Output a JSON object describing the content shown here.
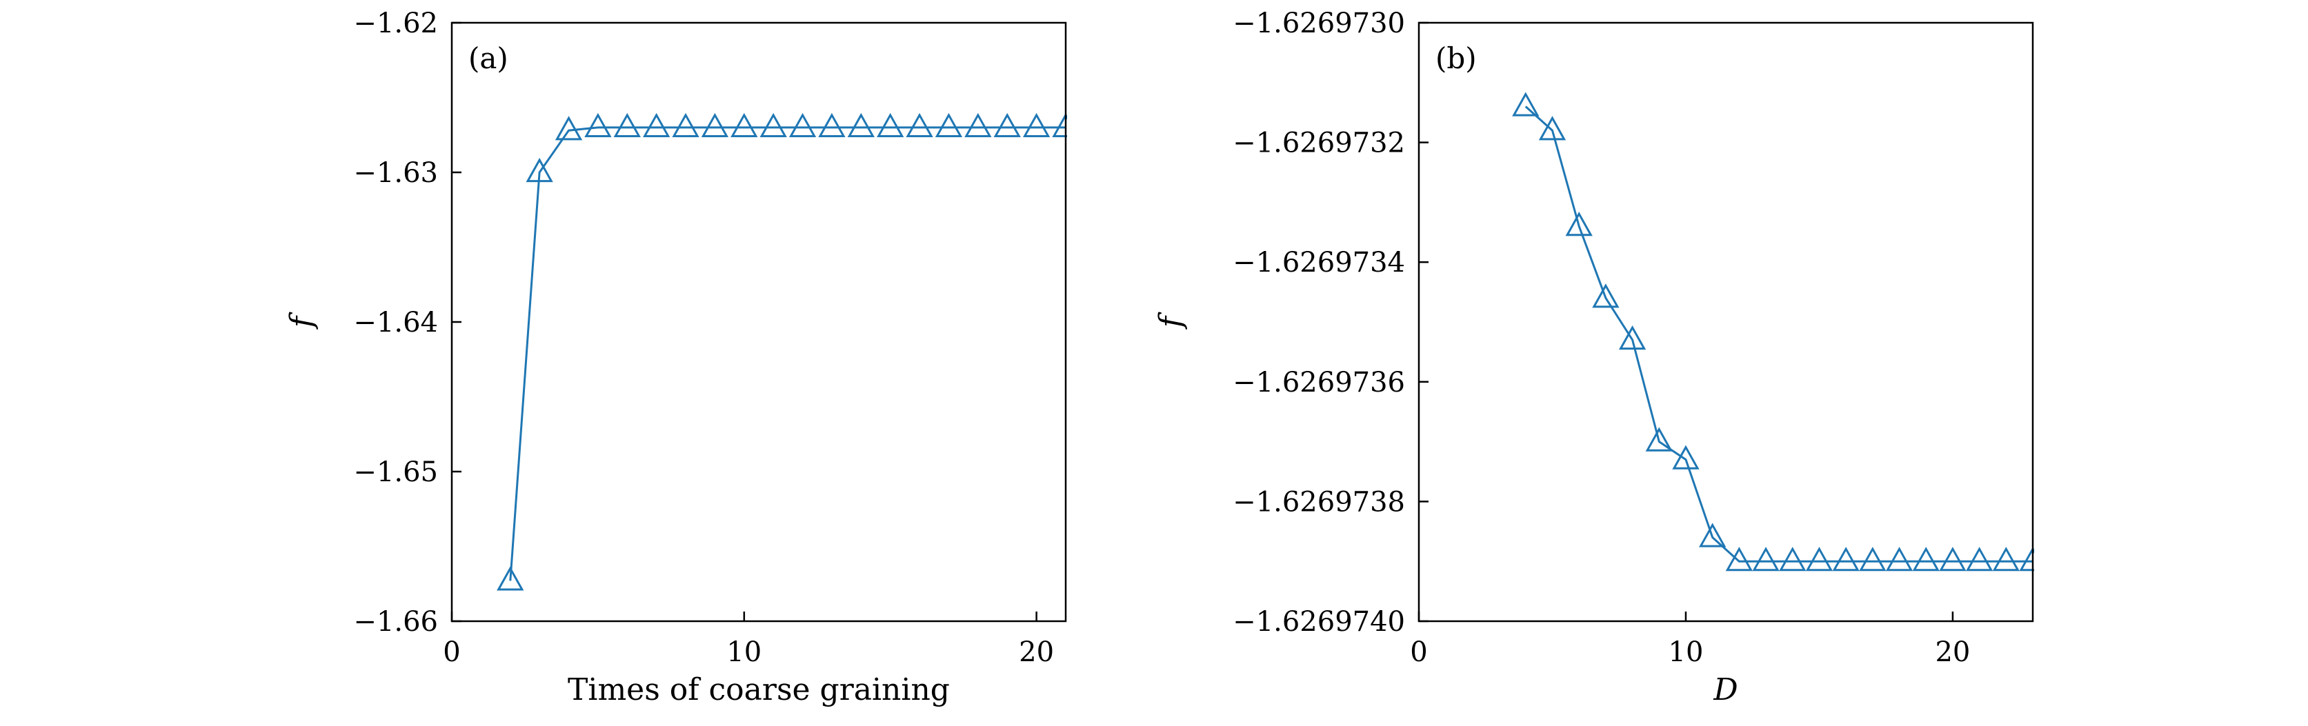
{
  "chart_data": [
    {
      "type": "line",
      "panel_label": "(a)",
      "xlabel": "Times of coarse graining",
      "ylabel": "f",
      "ylabel_italic": true,
      "xlabel_italic": false,
      "xlim": [
        0,
        21
      ],
      "ylim": [
        -1.66,
        -1.62
      ],
      "xticks": [
        0,
        10,
        20
      ],
      "xtick_labels": [
        "0",
        "10",
        "20"
      ],
      "yticks": [
        -1.66,
        -1.65,
        -1.64,
        -1.63,
        -1.62
      ],
      "ytick_labels": [
        "−1.66",
        "−1.65",
        "−1.64",
        "−1.63",
        "−1.62"
      ],
      "series": [
        {
          "marker": "triangle-open",
          "color": "#1f77b4",
          "x": [
            2,
            3,
            4,
            5,
            6,
            7,
            8,
            9,
            10,
            11,
            12,
            13,
            14,
            15,
            16,
            17,
            18,
            19,
            20,
            21
          ],
          "y": [
            -1.6573,
            -1.63,
            -1.6272,
            -1.627,
            -1.627,
            -1.627,
            -1.627,
            -1.627,
            -1.627,
            -1.627,
            -1.627,
            -1.627,
            -1.627,
            -1.627,
            -1.627,
            -1.627,
            -1.627,
            -1.627,
            -1.627,
            -1.627
          ]
        }
      ],
      "grid": false
    },
    {
      "type": "line",
      "panel_label": "(b)",
      "xlabel": "D",
      "ylabel": "f",
      "ylabel_italic": true,
      "xlabel_italic": true,
      "xlim": [
        0,
        23
      ],
      "ylim": [
        -1.626974,
        -1.626973
      ],
      "xticks": [
        0,
        10,
        20
      ],
      "xtick_labels": [
        "0",
        "10",
        "20"
      ],
      "yticks": [
        -1.626974,
        -1.6269738,
        -1.6269736,
        -1.6269734,
        -1.6269732,
        -1.626973
      ],
      "ytick_labels": [
        "−1.6269740",
        "−1.6269738",
        "−1.6269736",
        "−1.6269734",
        "−1.6269732",
        "−1.6269730"
      ],
      "series": [
        {
          "marker": "triangle-open",
          "color": "#1f77b4",
          "x": [
            4,
            5,
            6,
            7,
            8,
            9,
            10,
            11,
            12,
            13,
            14,
            15,
            16,
            17,
            18,
            19,
            20,
            21,
            22,
            23
          ],
          "y": [
            -1.62697314,
            -1.62697318,
            -1.62697334,
            -1.62697346,
            -1.62697353,
            -1.6269737,
            -1.62697373,
            -1.62697386,
            -1.6269739,
            -1.6269739,
            -1.6269739,
            -1.6269739,
            -1.6269739,
            -1.6269739,
            -1.6269739,
            -1.6269739,
            -1.6269739,
            -1.6269739,
            -1.6269739,
            -1.6269739
          ]
        }
      ],
      "grid": false
    }
  ]
}
